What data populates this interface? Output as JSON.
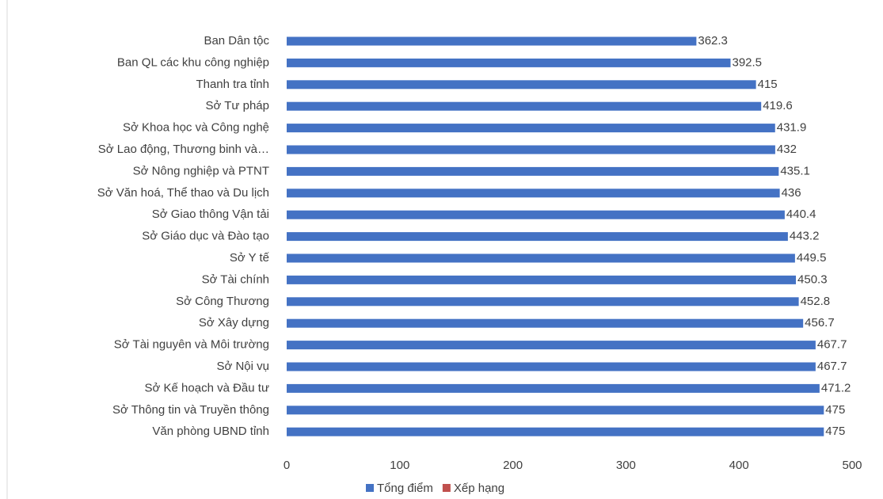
{
  "chart_data": {
    "type": "hbar",
    "categories": [
      "Ban Dân tộc",
      "Ban QL các khu công nghiệp",
      "Thanh tra tỉnh",
      "Sở Tư pháp",
      "Sở Khoa học và Công nghệ",
      "Sở Lao động, Thương binh và…",
      "Sở Nông nghiệp và PTNT",
      "Sở Văn hoá, Thể thao và Du lịch",
      "Sở Giao thông Vận tải",
      "Sở Giáo dục và Đào tạo",
      "Sở Y tế",
      "Sở Tài chính",
      "Sở Công Thương",
      "Sở Xây dựng",
      "Sở Tài nguyên và Môi trường",
      "Sở Nội vụ",
      "Sở Kế hoạch và Đầu tư",
      "Sở Thông tin và Truyền thông",
      "Văn phòng UBND tỉnh"
    ],
    "series": [
      {
        "name": "Tổng điểm",
        "color": "#4472c4",
        "values": [
          362.3,
          392.5,
          415,
          419.6,
          431.9,
          432,
          435.1,
          436,
          440.4,
          443.2,
          449.5,
          450.3,
          452.8,
          456.7,
          467.7,
          467.7,
          471.2,
          475,
          475
        ]
      },
      {
        "name": "Xếp hạng",
        "color": "#c0504d",
        "values": [
          null,
          null,
          null,
          null,
          null,
          null,
          null,
          null,
          null,
          null,
          null,
          null,
          null,
          null,
          null,
          null,
          null,
          null,
          null
        ]
      }
    ],
    "xlim": [
      0,
      500
    ],
    "xticks": [
      0,
      100,
      200,
      300,
      400,
      500
    ],
    "grid": false,
    "legend": "bottom"
  }
}
